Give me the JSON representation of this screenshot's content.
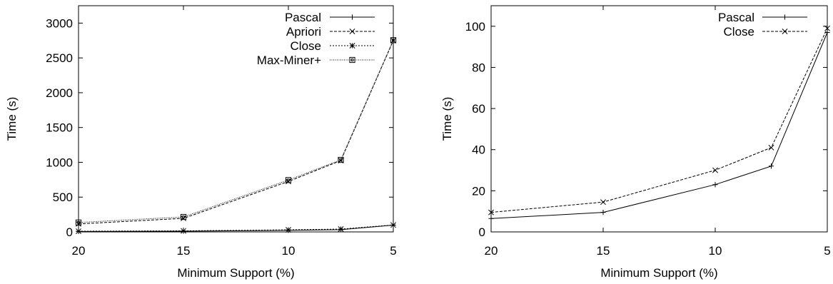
{
  "chart_data": [
    {
      "type": "line",
      "title": "",
      "xlabel": "Minimum Support (%)",
      "ylabel": "Time (s)",
      "x_reversed": true,
      "xlim": [
        20,
        5
      ],
      "ylim": [
        0,
        3250
      ],
      "xticks": [
        20,
        15,
        10,
        5
      ],
      "yticks": [
        0,
        500,
        1000,
        1500,
        2000,
        2500,
        3000
      ],
      "grid": false,
      "legend_position": "top-right",
      "series": [
        {
          "name": "Pascal",
          "marker": "plus",
          "dash": "solid",
          "x": [
            20,
            15,
            10,
            7.5,
            5
          ],
          "y": [
            6,
            10,
            23,
            32,
            97
          ]
        },
        {
          "name": "Apriori",
          "marker": "cross",
          "dash": "dashed",
          "x": [
            20,
            15,
            10,
            7.5,
            5
          ],
          "y": [
            115,
            195,
            725,
            1025,
            2750
          ]
        },
        {
          "name": "Close",
          "marker": "star",
          "dash": "dotted",
          "x": [
            20,
            15,
            10,
            7.5,
            5
          ],
          "y": [
            10,
            15,
            30,
            41,
            99
          ]
        },
        {
          "name": "Max-Miner+",
          "marker": "square",
          "dash": "densedot",
          "x": [
            20,
            15,
            10,
            7.5,
            5
          ],
          "y": [
            135,
            215,
            745,
            1035,
            2755
          ]
        }
      ]
    },
    {
      "type": "line",
      "title": "",
      "xlabel": "Minimum Support (%)",
      "ylabel": "Time (s)",
      "x_reversed": true,
      "xlim": [
        20,
        5
      ],
      "ylim": [
        0,
        110
      ],
      "xticks": [
        20,
        15,
        10,
        5
      ],
      "yticks": [
        0,
        20,
        40,
        60,
        80,
        100
      ],
      "grid": false,
      "legend_position": "top-right",
      "series": [
        {
          "name": "Pascal",
          "marker": "plus",
          "dash": "solid",
          "x": [
            20,
            15,
            10,
            7.5,
            5
          ],
          "y": [
            6.5,
            9.5,
            23,
            32,
            97
          ]
        },
        {
          "name": "Close",
          "marker": "cross",
          "dash": "dashed",
          "x": [
            20,
            15,
            10,
            7.5,
            5
          ],
          "y": [
            9.5,
            14.5,
            30,
            41,
            99
          ]
        }
      ]
    }
  ]
}
